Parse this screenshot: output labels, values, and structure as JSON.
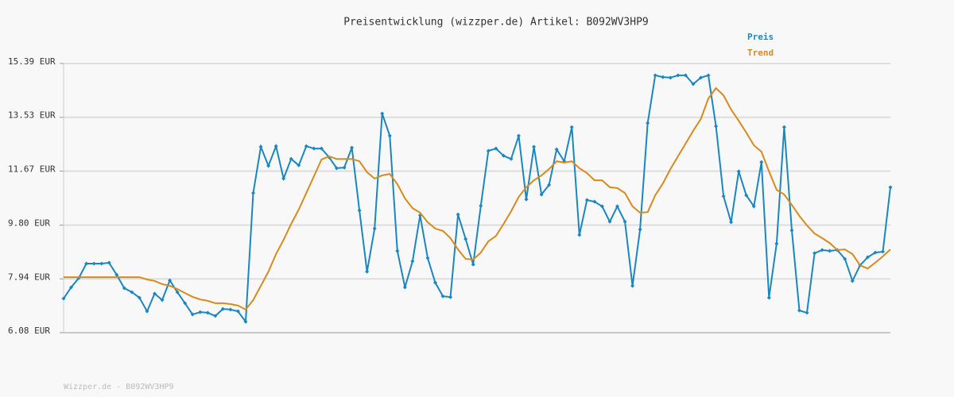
{
  "chart_data": {
    "type": "line",
    "title": "Preisentwicklung (wizzper.de) Artikel: B092WV3HP9",
    "series": [
      {
        "name": "Preis",
        "color": "#1a87c0",
        "markers": true,
        "values": [
          7.26,
          7.65,
          7.97,
          8.47,
          8.47,
          8.47,
          8.5,
          8.08,
          7.62,
          7.48,
          7.29,
          6.82,
          7.43,
          7.21,
          7.89,
          7.48,
          7.1,
          6.71,
          6.79,
          6.77,
          6.66,
          6.9,
          6.88,
          6.82,
          6.46,
          10.91,
          12.51,
          11.85,
          12.53,
          11.41,
          12.09,
          11.87,
          12.53,
          12.45,
          12.45,
          12.15,
          11.77,
          11.79,
          12.48,
          10.31,
          8.19,
          9.68,
          13.66,
          12.89,
          8.91,
          7.65,
          8.55,
          10.14,
          8.66,
          7.81,
          7.34,
          7.31,
          10.17,
          9.32,
          8.44,
          10.47,
          12.37,
          12.45,
          12.2,
          12.09,
          12.89,
          10.69,
          12.51,
          10.86,
          11.19,
          12.42,
          12.01,
          13.19,
          9.46,
          10.67,
          10.61,
          10.45,
          9.92,
          10.45,
          9.92,
          7.7,
          9.65,
          13.33,
          14.98,
          14.92,
          14.9,
          14.98,
          14.98,
          14.68,
          14.9,
          14.98,
          13.22,
          10.8,
          9.9,
          11.66,
          10.83,
          10.45,
          11.98,
          7.29,
          9.16,
          13.19,
          9.62,
          6.85,
          6.77,
          8.83,
          8.94,
          8.91,
          8.94,
          8.63,
          7.87,
          8.41,
          8.69,
          8.85,
          8.88,
          11.11
        ]
      },
      {
        "name": "Trend",
        "color": "#d98a1e",
        "markers": false,
        "values": [
          8.0,
          8.0,
          8.0,
          8.0,
          8.0,
          8.0,
          8.0,
          8.0,
          8.0,
          8.0,
          8.0,
          7.92,
          7.87,
          7.76,
          7.7,
          7.59,
          7.45,
          7.32,
          7.23,
          7.18,
          7.1,
          7.1,
          7.07,
          7.02,
          6.88,
          7.21,
          7.7,
          8.19,
          8.8,
          9.29,
          9.84,
          10.34,
          10.91,
          11.49,
          12.07,
          12.18,
          12.09,
          12.09,
          12.09,
          12.01,
          11.63,
          11.41,
          11.52,
          11.57,
          11.22,
          10.72,
          10.39,
          10.23,
          9.9,
          9.68,
          9.6,
          9.35,
          8.96,
          8.63,
          8.61,
          8.85,
          9.24,
          9.43,
          9.84,
          10.28,
          10.78,
          11.11,
          11.35,
          11.52,
          11.74,
          12.01,
          11.96,
          12.01,
          11.77,
          11.6,
          11.35,
          11.35,
          11.11,
          11.08,
          10.91,
          10.45,
          10.23,
          10.25,
          10.83,
          11.24,
          11.74,
          12.18,
          12.62,
          13.06,
          13.47,
          14.18,
          14.54,
          14.29,
          13.8,
          13.41,
          13.0,
          12.56,
          12.34,
          11.66,
          11.02,
          10.86,
          10.5,
          10.12,
          9.79,
          9.51,
          9.35,
          9.18,
          8.94,
          8.96,
          8.8,
          8.41,
          8.3,
          8.5,
          8.72,
          8.96
        ]
      }
    ],
    "ylim": [
      6.08,
      15.39
    ],
    "yticks": [
      {
        "value": 6.08,
        "label": "6.08 EUR"
      },
      {
        "value": 7.94,
        "label": "7.94 EUR"
      },
      {
        "value": 9.8,
        "label": "9.80 EUR"
      },
      {
        "value": 11.67,
        "label": "11.67 EUR"
      },
      {
        "value": 13.53,
        "label": "13.53 EUR"
      },
      {
        "value": 15.39,
        "label": "15.39 EUR"
      }
    ],
    "grid": true,
    "legend": "top-right"
  },
  "footer": "Wizzper.de - B092WV3HP9"
}
